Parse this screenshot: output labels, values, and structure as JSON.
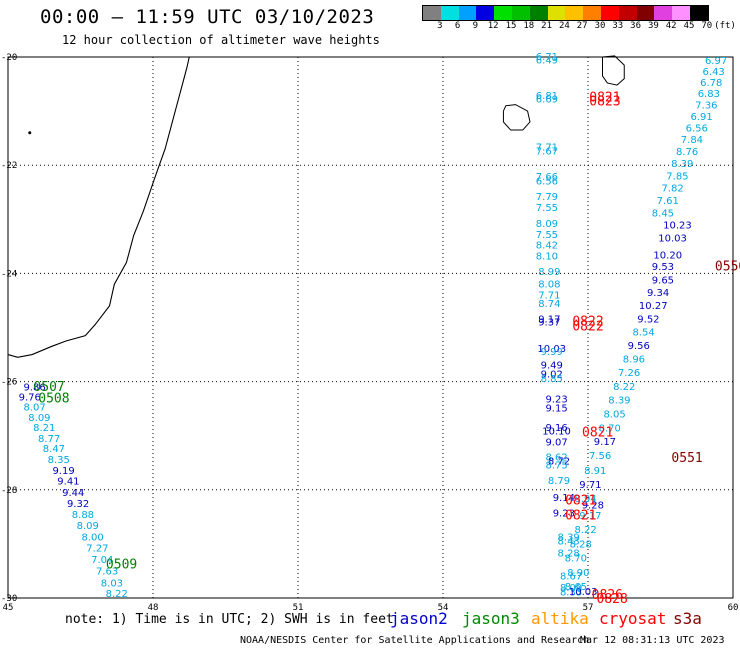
{
  "header": {
    "title": "00:00 — 11:59 UTC 03/10/2023",
    "subtitle": "12 hour collection of altimeter wave heights"
  },
  "legend": {
    "unit": "(ft)",
    "labels": [
      "3",
      "6",
      "9",
      "12",
      "15",
      "18",
      "21",
      "24",
      "27",
      "30",
      "33",
      "36",
      "39",
      "42",
      "45",
      "70"
    ],
    "colors": [
      "#808080",
      "#00e0e0",
      "#00a0ff",
      "#0000e0",
      "#00e000",
      "#00c000",
      "#008000",
      "#e0e000",
      "#ffc000",
      "#ff8000",
      "#ff0000",
      "#c00000",
      "#800000",
      "#e040e0",
      "#ff90ff",
      "#000000"
    ]
  },
  "footer": {
    "note": "note: 1) Time is in UTC; 2) SWH is in feet",
    "missions": [
      {
        "name": "jason2",
        "color": "#0000cc"
      },
      {
        "name": "jason3",
        "color": "#008800"
      },
      {
        "name": "altika",
        "color": "#ff9900"
      },
      {
        "name": "cryosat",
        "color": "#ff0000"
      },
      {
        "name": "s3a",
        "color": "#880000"
      }
    ],
    "credit": "NOAA/NESDIS Center for Satellite Applications and Research",
    "timestamp": "Mar 12 08:31:13 UTC 2023"
  },
  "chart_data": {
    "type": "scatter",
    "xlim": [
      45,
      60
    ],
    "ylim": [
      -30,
      -20
    ],
    "x_ticks": [
      "45",
      "48",
      "51",
      "54",
      "57",
      "60"
    ],
    "y_ticks": [
      "-20",
      "-22",
      "-24",
      "-26",
      "-28",
      "-30"
    ],
    "grid": true,
    "colors": {
      "lb": "#00a8e0",
      "db": "#0000c0",
      "gr": "#008000",
      "rd": "#ff0000",
      "dr": "#880000"
    },
    "swh_labels": [
      {
        "x": 45.55,
        "y": -26.09,
        "t": "9.86",
        "c": "db"
      },
      {
        "x": 45.45,
        "y": -26.28,
        "t": "9.76",
        "c": "db"
      },
      {
        "x": 45.55,
        "y": -26.46,
        "t": "8.07",
        "c": "lb"
      },
      {
        "x": 45.65,
        "y": -26.65,
        "t": "8.09",
        "c": "lb"
      },
      {
        "x": 45.75,
        "y": -26.84,
        "t": "8.21",
        "c": "lb"
      },
      {
        "x": 45.85,
        "y": -27.04,
        "t": "8.77",
        "c": "lb"
      },
      {
        "x": 45.95,
        "y": -27.23,
        "t": "8.47",
        "c": "lb"
      },
      {
        "x": 46.05,
        "y": -27.43,
        "t": "8.35",
        "c": "lb"
      },
      {
        "x": 46.15,
        "y": -27.63,
        "t": "9.19",
        "c": "db"
      },
      {
        "x": 46.25,
        "y": -27.83,
        "t": "9.41",
        "c": "db"
      },
      {
        "x": 46.35,
        "y": -28.04,
        "t": "9.44",
        "c": "db"
      },
      {
        "x": 46.45,
        "y": -28.24,
        "t": "9.32",
        "c": "db"
      },
      {
        "x": 46.55,
        "y": -28.45,
        "t": "8.88",
        "c": "lb"
      },
      {
        "x": 46.65,
        "y": -28.65,
        "t": "8.09",
        "c": "lb"
      },
      {
        "x": 46.75,
        "y": -28.86,
        "t": "8.00",
        "c": "lb"
      },
      {
        "x": 46.85,
        "y": -29.07,
        "t": "7.27",
        "c": "lb"
      },
      {
        "x": 46.95,
        "y": -29.28,
        "t": "7.04",
        "c": "lb"
      },
      {
        "x": 47.05,
        "y": -29.49,
        "t": "7.63",
        "c": "lb"
      },
      {
        "x": 47.15,
        "y": -29.71,
        "t": "8.03",
        "c": "lb"
      },
      {
        "x": 47.25,
        "y": -29.91,
        "t": "8.22",
        "c": "lb"
      },
      {
        "x": 56.15,
        "y": -19.98,
        "t": "6.71",
        "c": "lb"
      },
      {
        "x": 56.15,
        "y": -20.05,
        "t": "6.49",
        "c": "lb"
      },
      {
        "x": 56.15,
        "y": -20.7,
        "t": "6.81",
        "c": "lb"
      },
      {
        "x": 56.15,
        "y": -20.77,
        "t": "6.69",
        "c": "lb"
      },
      {
        "x": 56.15,
        "y": -21.65,
        "t": "7.71",
        "c": "lb"
      },
      {
        "x": 56.15,
        "y": -21.73,
        "t": "7.67",
        "c": "lb"
      },
      {
        "x": 56.15,
        "y": -22.2,
        "t": "7.66",
        "c": "lb"
      },
      {
        "x": 56.15,
        "y": -22.28,
        "t": "6.56",
        "c": "lb"
      },
      {
        "x": 56.15,
        "y": -22.57,
        "t": "7.79",
        "c": "lb"
      },
      {
        "x": 56.15,
        "y": -22.77,
        "t": "7.55",
        "c": "lb"
      },
      {
        "x": 56.15,
        "y": -23.07,
        "t": "8.09",
        "c": "lb"
      },
      {
        "x": 56.15,
        "y": -23.27,
        "t": "7.55",
        "c": "lb"
      },
      {
        "x": 56.15,
        "y": -23.47,
        "t": "8.42",
        "c": "lb"
      },
      {
        "x": 56.15,
        "y": -23.67,
        "t": "8.10",
        "c": "lb"
      },
      {
        "x": 56.2,
        "y": -23.96,
        "t": "8.99",
        "c": "lb"
      },
      {
        "x": 56.2,
        "y": -24.19,
        "t": "8.08",
        "c": "lb"
      },
      {
        "x": 56.2,
        "y": -24.39,
        "t": "7.71",
        "c": "lb"
      },
      {
        "x": 56.2,
        "y": -24.55,
        "t": "8.74",
        "c": "lb"
      },
      {
        "x": 56.2,
        "y": -24.83,
        "t": "9.17",
        "c": "db"
      },
      {
        "x": 56.2,
        "y": -24.89,
        "t": "9.37",
        "c": "db"
      },
      {
        "x": 56.25,
        "y": -25.38,
        "t": "10.03",
        "c": "db"
      },
      {
        "x": 56.25,
        "y": -25.43,
        "t": "9.99",
        "c": "lb"
      },
      {
        "x": 56.25,
        "y": -25.68,
        "t": "9.49",
        "c": "db"
      },
      {
        "x": 56.25,
        "y": -25.85,
        "t": "9.02",
        "c": "db"
      },
      {
        "x": 56.25,
        "y": -25.93,
        "t": "8.85",
        "c": "lb"
      },
      {
        "x": 56.35,
        "y": -26.31,
        "t": "9.23",
        "c": "db"
      },
      {
        "x": 56.35,
        "y": -26.48,
        "t": "9.15",
        "c": "db"
      },
      {
        "x": 56.35,
        "y": -26.84,
        "t": "9.16",
        "c": "db"
      },
      {
        "x": 56.35,
        "y": -26.9,
        "t": "10.10",
        "c": "db"
      },
      {
        "x": 56.35,
        "y": -27.11,
        "t": "9.07",
        "c": "db"
      },
      {
        "x": 56.35,
        "y": -27.38,
        "t": "8.62",
        "c": "lb"
      },
      {
        "x": 56.4,
        "y": -27.46,
        "t": "8.72",
        "c": "db"
      },
      {
        "x": 56.35,
        "y": -27.53,
        "t": "8.75",
        "c": "lb"
      },
      {
        "x": 56.4,
        "y": -27.82,
        "t": "8.79",
        "c": "lb"
      },
      {
        "x": 56.5,
        "y": -28.13,
        "t": "9.14",
        "c": "db"
      },
      {
        "x": 56.5,
        "y": -28.42,
        "t": "9.23",
        "c": "db"
      },
      {
        "x": 56.6,
        "y": -28.86,
        "t": "8.39",
        "c": "lb"
      },
      {
        "x": 56.6,
        "y": -28.94,
        "t": "8.43",
        "c": "lb"
      },
      {
        "x": 56.6,
        "y": -29.16,
        "t": "8.28",
        "c": "lb"
      },
      {
        "x": 56.65,
        "y": -29.58,
        "t": "8.67",
        "c": "lb"
      },
      {
        "x": 56.65,
        "y": -29.8,
        "t": "8.09",
        "c": "lb"
      },
      {
        "x": 56.65,
        "y": -29.88,
        "t": "8.33",
        "c": "lb"
      },
      {
        "x": 56.9,
        "y": -29.87,
        "t": "10.03",
        "c": "db"
      },
      {
        "x": 59.65,
        "y": -20.06,
        "t": "6.97",
        "c": "lb"
      },
      {
        "x": 59.6,
        "y": -20.26,
        "t": "6.43",
        "c": "lb"
      },
      {
        "x": 59.55,
        "y": -20.46,
        "t": "6.78",
        "c": "lb"
      },
      {
        "x": 59.5,
        "y": -20.67,
        "t": "6.83",
        "c": "lb"
      },
      {
        "x": 59.45,
        "y": -20.88,
        "t": "7.36",
        "c": "lb"
      },
      {
        "x": 59.35,
        "y": -21.09,
        "t": "6.91",
        "c": "lb"
      },
      {
        "x": 59.25,
        "y": -21.3,
        "t": "6.56",
        "c": "lb"
      },
      {
        "x": 59.15,
        "y": -21.52,
        "t": "7.84",
        "c": "lb"
      },
      {
        "x": 59.05,
        "y": -21.74,
        "t": "8.76",
        "c": "lb"
      },
      {
        "x": 58.95,
        "y": -21.96,
        "t": "8.39",
        "c": "lb"
      },
      {
        "x": 58.85,
        "y": -22.19,
        "t": "7.85",
        "c": "lb"
      },
      {
        "x": 58.75,
        "y": -22.41,
        "t": "7.82",
        "c": "lb"
      },
      {
        "x": 58.65,
        "y": -22.64,
        "t": "7.61",
        "c": "lb"
      },
      {
        "x": 58.55,
        "y": -22.87,
        "t": "8.45",
        "c": "lb"
      },
      {
        "x": 58.85,
        "y": -23.1,
        "t": "10.23",
        "c": "db"
      },
      {
        "x": 58.75,
        "y": -23.34,
        "t": "10.03",
        "c": "db"
      },
      {
        "x": 58.65,
        "y": -23.65,
        "t": "10.20",
        "c": "db"
      },
      {
        "x": 58.55,
        "y": -23.86,
        "t": "9.53",
        "c": "db"
      },
      {
        "x": 58.55,
        "y": -24.11,
        "t": "9.65",
        "c": "db"
      },
      {
        "x": 58.45,
        "y": -24.34,
        "t": "9.34",
        "c": "db"
      },
      {
        "x": 58.35,
        "y": -24.58,
        "t": "10.27",
        "c": "db"
      },
      {
        "x": 58.25,
        "y": -24.83,
        "t": "9.52",
        "c": "db"
      },
      {
        "x": 58.15,
        "y": -25.07,
        "t": "8.54",
        "c": "lb"
      },
      {
        "x": 58.05,
        "y": -25.32,
        "t": "9.56",
        "c": "db"
      },
      {
        "x": 57.95,
        "y": -25.57,
        "t": "8.96",
        "c": "lb"
      },
      {
        "x": 57.85,
        "y": -25.82,
        "t": "7.26",
        "c": "lb"
      },
      {
        "x": 57.75,
        "y": -26.08,
        "t": "8.22",
        "c": "lb"
      },
      {
        "x": 57.65,
        "y": -26.33,
        "t": "8.39",
        "c": "lb"
      },
      {
        "x": 57.55,
        "y": -26.59,
        "t": "8.05",
        "c": "lb"
      },
      {
        "x": 57.45,
        "y": -26.85,
        "t": "8.70",
        "c": "lb"
      },
      {
        "x": 57.35,
        "y": -27.1,
        "t": "9.17",
        "c": "db"
      },
      {
        "x": 57.25,
        "y": -27.36,
        "t": "7.56",
        "c": "lb"
      },
      {
        "x": 57.15,
        "y": -27.63,
        "t": "8.91",
        "c": "lb"
      },
      {
        "x": 57.05,
        "y": -27.89,
        "t": "9.71",
        "c": "db"
      },
      {
        "x": 56.95,
        "y": -28.15,
        "t": "8.94",
        "c": "lb"
      },
      {
        "x": 57.1,
        "y": -28.27,
        "t": "9.28",
        "c": "db"
      },
      {
        "x": 57.05,
        "y": -28.47,
        "t": "9.17",
        "c": "lb"
      },
      {
        "x": 56.95,
        "y": -28.72,
        "t": "8.22",
        "c": "lb"
      },
      {
        "x": 56.85,
        "y": -28.99,
        "t": "8.28",
        "c": "lb"
      },
      {
        "x": 56.75,
        "y": -29.25,
        "t": "8.70",
        "c": "lb"
      },
      {
        "x": 56.8,
        "y": -29.52,
        "t": "8.90",
        "c": "lb"
      },
      {
        "x": 56.75,
        "y": -29.78,
        "t": "8.65",
        "c": "lb"
      }
    ],
    "time_labels": [
      {
        "x": 45.85,
        "y": -26.08,
        "t": "0507",
        "c": "gr"
      },
      {
        "x": 45.95,
        "y": -26.29,
        "t": "0508",
        "c": "gr"
      },
      {
        "x": 47.35,
        "y": -29.36,
        "t": "0509",
        "c": "gr"
      },
      {
        "x": 57.35,
        "y": -20.73,
        "t": "0821",
        "c": "rd"
      },
      {
        "x": 57.35,
        "y": -20.8,
        "t": "0823",
        "c": "rd"
      },
      {
        "x": 57.0,
        "y": -24.87,
        "t": "0822",
        "c": "rd"
      },
      {
        "x": 57.0,
        "y": -24.96,
        "t": "0822",
        "c": "rd"
      },
      {
        "x": 57.2,
        "y": -26.92,
        "t": "0821",
        "c": "rd"
      },
      {
        "x": 56.85,
        "y": -28.18,
        "t": "0821",
        "c": "rd"
      },
      {
        "x": 56.85,
        "y": -28.46,
        "t": "0821",
        "c": "rd"
      },
      {
        "x": 57.4,
        "y": -29.93,
        "t": "0826",
        "c": "rd"
      },
      {
        "x": 57.5,
        "y": -30.0,
        "t": "0828",
        "c": "rd"
      },
      {
        "x": 59.95,
        "y": -23.85,
        "t": "0550",
        "c": "dr"
      },
      {
        "x": 59.05,
        "y": -27.39,
        "t": "0551",
        "c": "dr"
      }
    ]
  }
}
